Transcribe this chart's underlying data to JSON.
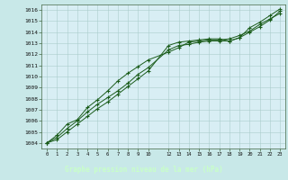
{
  "title": "Graphe pression niveau de la mer (hPa)",
  "bg_color": "#c8e8e8",
  "plot_bg_color": "#d8eef4",
  "grid_color": "#aacccc",
  "line_color": "#1a5c1a",
  "bottom_bar_color": "#2a6040",
  "bottom_text_color": "#c8ffc8",
  "xlim": [
    -0.5,
    23.5
  ],
  "ylim": [
    1003.5,
    1016.5
  ],
  "xticks": [
    0,
    1,
    2,
    3,
    4,
    5,
    6,
    7,
    8,
    9,
    10,
    12,
    13,
    14,
    15,
    16,
    17,
    18,
    19,
    20,
    21,
    22,
    23
  ],
  "xtick_labels": [
    "0",
    "1",
    "2",
    "3",
    "4",
    "5",
    "6",
    "7",
    "8",
    "9",
    "10",
    "12",
    "13",
    "14",
    "15",
    "16",
    "17",
    "18",
    "19",
    "20",
    "21",
    "22",
    "23"
  ],
  "yticks": [
    1004,
    1005,
    1006,
    1007,
    1008,
    1009,
    1010,
    1011,
    1012,
    1013,
    1014,
    1015,
    1016
  ],
  "series1_x": [
    0,
    1,
    2,
    3,
    4,
    5,
    6,
    7,
    8,
    9,
    10,
    12,
    13,
    14,
    15,
    16,
    17,
    18,
    19,
    20,
    21,
    22,
    23
  ],
  "series1_y": [
    1004.0,
    1004.7,
    1005.7,
    1006.1,
    1007.2,
    1007.9,
    1008.7,
    1009.6,
    1010.3,
    1010.9,
    1011.5,
    1012.2,
    1012.6,
    1013.1,
    1013.2,
    1013.3,
    1013.3,
    1013.4,
    1013.7,
    1014.1,
    1014.7,
    1015.2,
    1015.7
  ],
  "series2_x": [
    0,
    1,
    2,
    3,
    4,
    5,
    6,
    7,
    8,
    9,
    10,
    12,
    13,
    14,
    15,
    16,
    17,
    18,
    19,
    20,
    21,
    22,
    23
  ],
  "series2_y": [
    1004.0,
    1004.5,
    1005.3,
    1006.0,
    1006.8,
    1007.5,
    1008.1,
    1008.7,
    1009.4,
    1010.2,
    1010.8,
    1012.4,
    1012.8,
    1012.9,
    1013.1,
    1013.2,
    1013.2,
    1013.2,
    1013.5,
    1014.0,
    1014.5,
    1015.1,
    1015.9
  ],
  "series3_x": [
    0,
    1,
    2,
    3,
    4,
    5,
    6,
    7,
    8,
    9,
    10,
    12,
    13,
    14,
    15,
    16,
    17,
    18,
    19,
    20,
    21,
    22,
    23
  ],
  "series3_y": [
    1004.0,
    1004.3,
    1005.0,
    1005.7,
    1006.4,
    1007.1,
    1007.7,
    1008.4,
    1009.1,
    1009.8,
    1010.5,
    1012.8,
    1013.1,
    1013.2,
    1013.3,
    1013.4,
    1013.4,
    1013.2,
    1013.5,
    1014.4,
    1014.9,
    1015.5,
    1016.1
  ]
}
